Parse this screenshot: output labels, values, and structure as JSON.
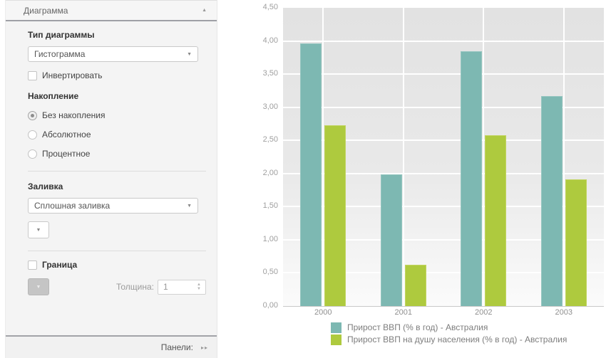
{
  "panel": {
    "title": "Диаграмма",
    "collapse_icon": "▲",
    "chart_type_label": "Тип диаграммы",
    "chart_type_value": "Гистограмма",
    "invert_label": "Инвертировать",
    "stacking_label": "Накопление",
    "stacking_options": [
      {
        "label": "Без накопления",
        "selected": true
      },
      {
        "label": "Абсолютное",
        "selected": false
      },
      {
        "label": "Процентное",
        "selected": false
      }
    ],
    "fill_label": "Заливка",
    "fill_value": "Сплошная заливка",
    "border_label": "Граница",
    "thickness_label": "Толщина:",
    "thickness_value": "1",
    "footer_label": "Панели:",
    "footer_arrows_icon": "▸▸"
  },
  "chart_data": {
    "type": "bar",
    "categories": [
      "2000",
      "2001",
      "2002",
      "2003"
    ],
    "series": [
      {
        "name": "Прирост ВВП (% в год) - Австралия",
        "color": "#7db8b2",
        "border_color": "#95c6c0",
        "values": [
          3.96,
          1.99,
          3.85,
          3.17
        ]
      },
      {
        "name": "Прирост ВВП на душу населения (% в год) - Австралия",
        "color": "#aeca3e",
        "border_color": "#c2d562",
        "values": [
          2.73,
          0.62,
          2.58,
          1.91
        ]
      }
    ],
    "ylim": [
      0,
      4.5
    ],
    "ytick_step": 0.5,
    "ytick_labels": [
      "0,00",
      "0,50",
      "1,00",
      "1,50",
      "2,00",
      "2,50",
      "3,00",
      "3,50",
      "4,00",
      "4,50"
    ],
    "grid": true,
    "legend_position": "bottom"
  }
}
